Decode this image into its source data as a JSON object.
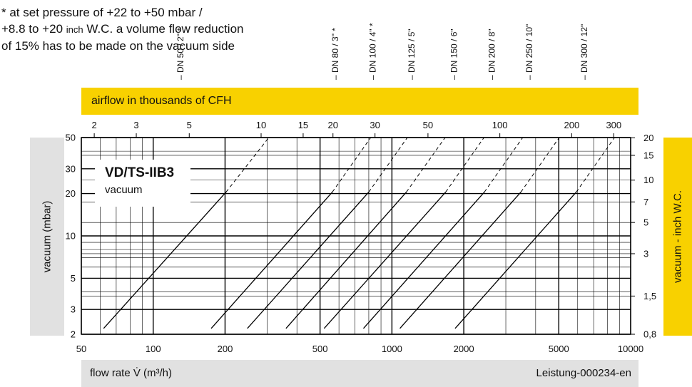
{
  "note": {
    "line1": "* at set pressure of +22 to +50 mbar /",
    "line2a": "+8.8 to +20 ",
    "line2b": "inch",
    "line2c": " W.C. a volume flow reduction",
    "line3": "of 15% has to be made on the vacuum side"
  },
  "top_band_label": "airflow in thousands of CFH",
  "left_band_label": "vacuum (mbar)",
  "right_band_label": "vacuum - inch W.C.",
  "bottom_band": {
    "xlabel": "flow rate V̇ (m³/h)",
    "reference": "Leistung-000234-en"
  },
  "legend": {
    "title": "VD/TS-IIB3",
    "subtitle": "vacuum"
  },
  "colors": {
    "yellow": "#f8d100",
    "gray_band": "#e1e1e1",
    "lines": "#000000"
  },
  "chart_data": {
    "type": "line",
    "x_scale": "log",
    "y_scale": "log",
    "xlim": [
      50,
      10000
    ],
    "ylim": [
      2,
      50
    ],
    "x_ticks": [
      50,
      100,
      200,
      500,
      1000,
      2000,
      5000,
      10000
    ],
    "x_tick_labels": [
      "50",
      "100",
      "200",
      "500",
      "1000",
      "2000",
      "5000",
      "10000"
    ],
    "y_ticks": [
      2,
      3,
      5,
      10,
      20,
      30,
      50
    ],
    "y_tick_labels": [
      "2",
      "3",
      "5",
      "10",
      "20",
      "30",
      "50"
    ],
    "top_axis": {
      "ticks": [
        2,
        3,
        5,
        10,
        15,
        20,
        30,
        50,
        100,
        200,
        300
      ],
      "tick_labels": [
        "2",
        "3",
        "5",
        "10",
        "15",
        "20",
        "30",
        "50",
        "100",
        "200",
        "300"
      ],
      "unit_m3h_per_tick": 28.3168
    },
    "right_axis": {
      "ticks": [
        0.8,
        1.5,
        3,
        5,
        7,
        10,
        15,
        20
      ],
      "tick_labels": [
        "0,8",
        "1,5",
        "3",
        "5",
        "7",
        "10",
        "15",
        "20"
      ],
      "unit_mbar_per_tick": 2.4909
    },
    "series": [
      {
        "name": "DN 50 / 2\" *",
        "x": [
          62,
          202
        ],
        "y": [
          2.2,
          20.5
        ],
        "dashed_x": [
          202,
          305
        ],
        "dashed_y": [
          20.5,
          50
        ]
      },
      {
        "name": "DN 80 / 3\" *",
        "x": [
          175,
          563
        ],
        "y": [
          2.2,
          20.5
        ],
        "dashed_x": [
          563,
          815
        ],
        "dashed_y": [
          20.5,
          50
        ]
      },
      {
        "name": "DN 100 / 4\" *",
        "x": [
          248,
          800
        ],
        "y": [
          2.2,
          20.5
        ],
        "dashed_x": [
          800,
          1160
        ],
        "dashed_y": [
          20.5,
          50
        ]
      },
      {
        "name": "DN 125 / 5\"",
        "x": [
          360,
          1150
        ],
        "y": [
          2.2,
          20.5
        ],
        "dashed_x": [
          1150,
          1670
        ],
        "dashed_y": [
          20.5,
          50
        ]
      },
      {
        "name": "DN 150 / 6\"",
        "x": [
          520,
          1680
        ],
        "y": [
          2.2,
          20.5
        ],
        "dashed_x": [
          1680,
          2430
        ],
        "dashed_y": [
          20.5,
          50
        ]
      },
      {
        "name": "DN 200 / 8\"",
        "x": [
          760,
          2440
        ],
        "y": [
          2.2,
          20.5
        ],
        "dashed_x": [
          2440,
          3530
        ],
        "dashed_y": [
          20.5,
          50
        ]
      },
      {
        "name": "DN 250 / 10\"",
        "x": [
          1080,
          3470
        ],
        "y": [
          2.2,
          20.5
        ],
        "dashed_x": [
          3470,
          5020
        ],
        "dashed_y": [
          20.5,
          50
        ]
      },
      {
        "name": "DN 300 / 12\"",
        "x": [
          1840,
          5920
        ],
        "y": [
          2.2,
          20.5
        ],
        "dashed_x": [
          5920,
          8560
        ],
        "dashed_y": [
          20.5,
          50
        ]
      }
    ],
    "dn_labels": [
      {
        "text": "DN 50 / 2\" *",
        "at_x": 130
      },
      {
        "text": "DN 80 / 3\" *",
        "at_x": 580
      },
      {
        "text": "DN 100 / 4\" *",
        "at_x": 830
      },
      {
        "text": "DN 125 / 5\"",
        "at_x": 1210
      },
      {
        "text": "DN 150 / 6\"",
        "at_x": 1820
      },
      {
        "text": "DN 200 / 8\"",
        "at_x": 2620
      },
      {
        "text": "DN 250 / 10\"",
        "at_x": 3760
      },
      {
        "text": "DN 300 / 12\"",
        "at_x": 6400
      }
    ]
  }
}
